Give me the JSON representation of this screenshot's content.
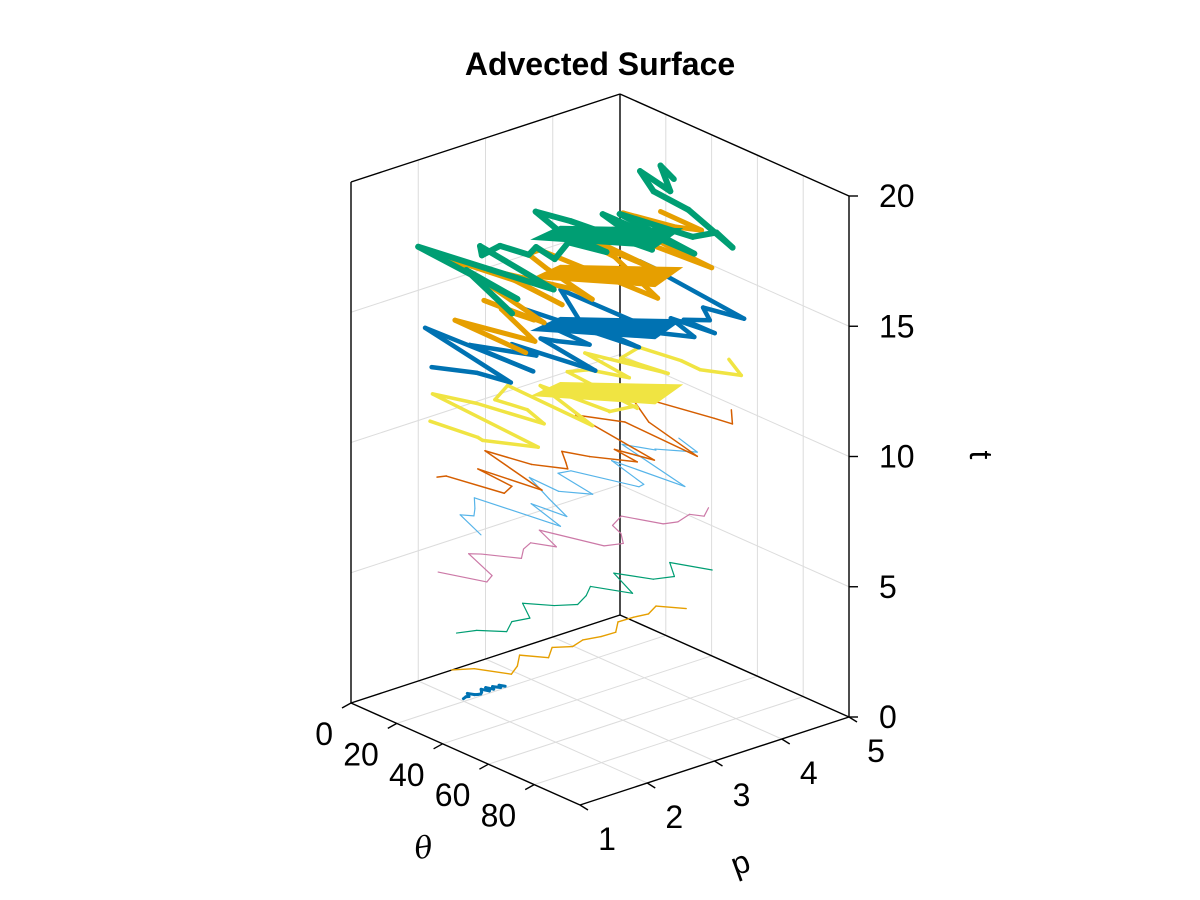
{
  "chart_data": {
    "type": "surface3d",
    "title": "Advected Surface",
    "axes": {
      "theta": {
        "label": "θ",
        "ticks": [
          "0",
          "20",
          "40",
          "60",
          "80"
        ],
        "lim": [
          0,
          100
        ]
      },
      "p": {
        "label": "p",
        "ticks": [
          "1",
          "2",
          "3",
          "4",
          "5"
        ],
        "lim": [
          1,
          5
        ]
      },
      "t": {
        "label": "t",
        "ticks": [
          "0",
          "5",
          "10",
          "15",
          "20"
        ],
        "lim": [
          0,
          20
        ]
      }
    },
    "grid": true,
    "series": [
      {
        "t": 1.5,
        "color": "#0072B2",
        "p_range": [
          1.3,
          1.9
        ],
        "theta_range": [
          30,
          50
        ],
        "spread": 0.05,
        "width": 3.0
      },
      {
        "t": 3.0,
        "color": "#E69F00",
        "p_range": [
          1.0,
          4.2
        ],
        "theta_range": [
          5,
          95
        ],
        "spread": 0.05,
        "width": 1.4
      },
      {
        "t": 4.5,
        "color": "#009E73",
        "p_range": [
          1.0,
          4.4
        ],
        "theta_range": [
          5,
          95
        ],
        "spread": 0.05,
        "width": 1.2
      },
      {
        "t": 6.5,
        "color": "#CC79A7",
        "p_range": [
          1.0,
          4.6
        ],
        "theta_range": [
          0,
          100
        ],
        "spread": 0.25,
        "width": 1.2
      },
      {
        "t": 8.5,
        "color": "#56B4E9",
        "p_range": [
          1.1,
          4.6
        ],
        "theta_range": [
          5,
          95
        ],
        "spread": 0.4,
        "width": 1.2
      },
      {
        "t": 10.0,
        "color": "#D55E00",
        "p_range": [
          1.0,
          4.8
        ],
        "theta_range": [
          0,
          100
        ],
        "spread": 0.45,
        "width": 1.5
      },
      {
        "t": 12.0,
        "color": "#F0E442",
        "p_range": [
          1.0,
          4.8
        ],
        "theta_range": [
          0,
          100
        ],
        "spread": 0.6,
        "width": 3.5
      },
      {
        "t": 14.5,
        "color": "#0072B2",
        "p_range": [
          1.0,
          4.8
        ],
        "theta_range": [
          0,
          100
        ],
        "spread": 0.6,
        "width": 4.5
      },
      {
        "t": 16.5,
        "color": "#E69F00",
        "p_range": [
          1.0,
          5.0
        ],
        "theta_range": [
          0,
          100
        ],
        "spread": 0.7,
        "width": 5.0
      },
      {
        "t": 18.0,
        "color": "#009E73",
        "p_range": [
          1.0,
          5.0
        ],
        "theta_range": [
          0,
          100
        ],
        "spread": 0.7,
        "width": 6.0
      }
    ]
  }
}
